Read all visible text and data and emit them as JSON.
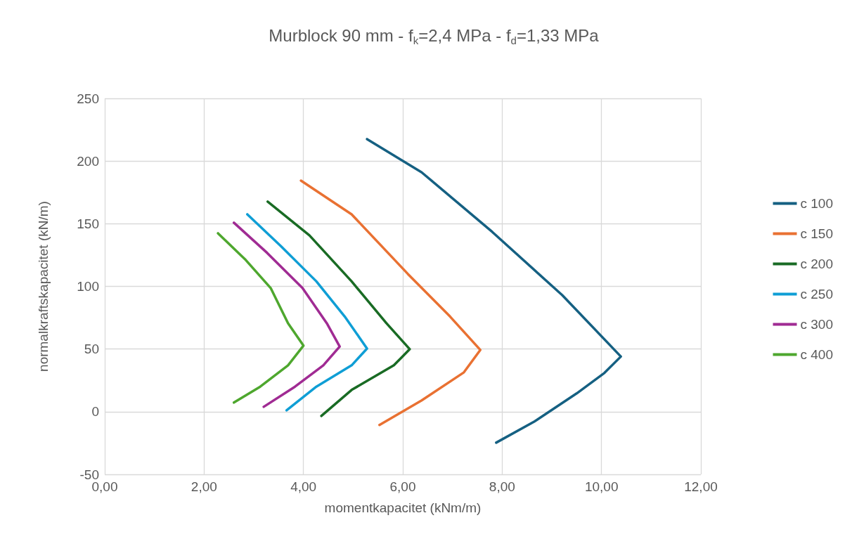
{
  "chart_data": {
    "type": "line",
    "title": "Murblock 90 mm - f$_{k}$=2,4 MPa - f$_{d}$=1,33 MPa",
    "xlabel": "momentkapacitet (kNm/m)",
    "ylabel": "normalkraftskapacitet (kN/m)",
    "xlim": [
      0,
      12
    ],
    "xticks": [
      {
        "value": 0,
        "label": "0,00"
      },
      {
        "value": 2,
        "label": "2,00"
      },
      {
        "value": 4,
        "label": "4,00"
      },
      {
        "value": 6,
        "label": "6,00"
      },
      {
        "value": 8,
        "label": "8,00"
      },
      {
        "value": 10,
        "label": "10,00"
      },
      {
        "value": 12,
        "label": "12,00"
      }
    ],
    "ylim": [
      -50,
      250
    ],
    "yticks": [
      -50,
      0,
      50,
      100,
      150,
      200,
      250
    ],
    "grid": true,
    "legend": "right",
    "marker": "none",
    "line_style": "solid",
    "series": [
      {
        "name": "c 100",
        "color": "#156082",
        "x": [
          5.28,
          6.38,
          7.8,
          9.21,
          10.39,
          10.06,
          9.5,
          8.65,
          7.88
        ],
        "values": [
          217.5,
          191,
          143.5,
          93,
          44,
          31,
          14.6,
          -7.8,
          -24.7
        ]
      },
      {
        "name": "c 150",
        "color": "#e97132",
        "x": [
          3.95,
          4.97,
          6.1,
          6.95,
          7.56,
          7.23,
          6.38,
          5.53
        ],
        "values": [
          184.4,
          157.5,
          110,
          76,
          49.3,
          31.4,
          9,
          -10.6
        ]
      },
      {
        "name": "c 200",
        "color": "#196b24",
        "x": [
          3.28,
          4.12,
          4.97,
          5.67,
          6.14,
          5.82,
          4.97,
          4.36
        ],
        "values": [
          167.6,
          140.7,
          104,
          70.6,
          49.9,
          37,
          17.4,
          -3.4
        ]
      },
      {
        "name": "c 250",
        "color": "#0f9ed5",
        "x": [
          2.87,
          3.55,
          4.26,
          4.83,
          5.28,
          4.97,
          4.26,
          3.66
        ],
        "values": [
          157.5,
          132,
          104,
          76,
          50.4,
          37,
          20,
          1.1
        ]
      },
      {
        "name": "c 300",
        "color": "#a02b93",
        "x": [
          2.6,
          3.27,
          3.98,
          4.47,
          4.73,
          4.4,
          3.83,
          3.2
        ],
        "values": [
          150.8,
          126.7,
          98.7,
          70.6,
          52,
          37,
          20,
          3.9
        ]
      },
      {
        "name": "c 400",
        "color": "#4ea72e",
        "x": [
          2.28,
          2.84,
          3.34,
          3.69,
          4.0,
          3.69,
          3.13,
          2.6
        ],
        "values": [
          142.4,
          121,
          98.7,
          70.6,
          52.7,
          37,
          20,
          7.3
        ]
      }
    ]
  }
}
